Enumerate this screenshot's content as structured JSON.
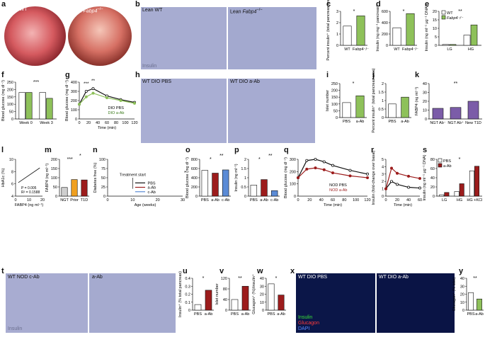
{
  "panels": {
    "a": {
      "letter": "a",
      "left": "Lean WT",
      "right_prefix": "Lean ",
      "right_gene": "Fabp4",
      "right_sup": "−/−"
    },
    "b": {
      "letter": "b",
      "left": "Lean WT",
      "right_prefix": "Lean ",
      "right_gene": "Fabp4",
      "right_sup": "−/−",
      "stain": "Insulin"
    },
    "c": {
      "letter": "c",
      "ylabel": "Percent insulin⁺ (total pancreas area)",
      "x": [
        "WT",
        "Fabp4⁻/⁻"
      ],
      "sig": "*"
    },
    "d": {
      "letter": "d",
      "ylabel": "Insulin (ng mg⁻¹ pancreas)",
      "x": [
        "WT",
        "Fabp4⁻/⁻"
      ],
      "sig": "*"
    },
    "e": {
      "letter": "e",
      "ylabel": "Insulin (ng ml⁻¹ μg⁻¹ DNA)",
      "x": [
        "LG",
        "HG"
      ],
      "legend": [
        "WT",
        "Fabp4⁻/⁻"
      ],
      "sig": "**"
    },
    "f": {
      "letter": "f",
      "ylabel": "Blood glucose (mg dl⁻¹)",
      "x": [
        "Week 0",
        "Week 3"
      ],
      "sig": "***"
    },
    "g": {
      "letter": "g",
      "ylabel": "Blood glucose (mg dl⁻¹)",
      "xlabel": "Time (min)",
      "legend": [
        "DIO PBS",
        "DIO a-Ab"
      ],
      "sig1": "***",
      "sig2": "**"
    },
    "h": {
      "letter": "h",
      "left": "WT DIO PBS",
      "right": "WT DIO a-Ab",
      "stain": "Insulin"
    },
    "i": {
      "letter": "i",
      "ylabel": "Islet number",
      "sig": "*"
    },
    "j": {
      "letter": "j",
      "ylabel": "Percent insulin⁺ (total pancreas area)"
    },
    "k": {
      "letter": "k",
      "ylabel": "FABP4 (ng ml⁻¹)",
      "x": [
        "NGT Ab⁻",
        "NGT Ab⁺",
        "New T1D"
      ],
      "sig": "**"
    },
    "l": {
      "letter": "l",
      "ylabel": "HbA1c (%)",
      "xlabel": "FABP4 (ng ml⁻¹)",
      "p": "P = 0.005",
      "r2": "R² = 0.1588"
    },
    "m": {
      "letter": "m",
      "ylabel": "FABP4 (ng ml⁻¹)",
      "x": [
        "NGT",
        "Prior",
        "T1D"
      ],
      "sig1": "***",
      "sig2": "*"
    },
    "n": {
      "letter": "n",
      "ylabel": "Diabetes free (%)",
      "xlabel": "Age (weeks)",
      "annotation": "Treatment start",
      "legend": [
        "PBS",
        "a-Ab",
        "c-Ab"
      ],
      "sig": "*"
    },
    "o": {
      "letter": "o",
      "ylabel": "Blood glucose (mg dl⁻¹)",
      "x": [
        "PBS",
        "a-Ab",
        "c-Ab"
      ],
      "sig1": "*",
      "sig2": "**"
    },
    "p": {
      "letter": "p",
      "ylabel": "Insulin (ng ml⁻¹)",
      "x": [
        "PBS",
        "a-Ab",
        "c-Ab"
      ],
      "sig1": "*",
      "sig2": "**"
    },
    "q": {
      "letter": "q",
      "ylabel": "Blood glucose (mg dl⁻¹)",
      "xlabel": "Time (min)",
      "legend": [
        "NOD PBS",
        "NOD a-Ab"
      ]
    },
    "r": {
      "letter": "r",
      "ylabel": "Insulin (fold-change over basal)",
      "xlabel": "Time (min)"
    },
    "s": {
      "letter": "s",
      "ylabel": "Insulin (ng ml⁻¹ μg⁻¹ DNA)",
      "x": [
        "LG",
        "HG",
        "HG +KCl"
      ],
      "legend": [
        "PBS",
        "a-Ab"
      ],
      "sig": "*"
    },
    "t": {
      "letter": "t",
      "left": "WT NOD c-Ab",
      "right": "a-Ab",
      "stain": "Insulin"
    },
    "u": {
      "letter": "u",
      "ylabel": "Insulin⁺ (% total pancreas)",
      "x": [
        "PBS",
        "a-Ab"
      ],
      "sig": "*"
    },
    "v": {
      "letter": "v",
      "ylabel": "Islet number",
      "x": [
        "PBS",
        "a-Ab"
      ],
      "sig": "**"
    },
    "w": {
      "letter": "w",
      "ylabel": "Glucagon⁺ (%)/insulin⁺",
      "x": [
        "PBS",
        "a-Ab"
      ],
      "sig": "*"
    },
    "x": {
      "letter": "x",
      "left": "WT DIO PBS",
      "right": "WT DIO a-Ab",
      "legend": [
        "Insulin",
        "Glucagon",
        "DAPI"
      ]
    },
    "y": {
      "letter": "y",
      "ylabel": "Glucagon⁺ (% islet)",
      "x": [
        "PBS",
        "a-Ab"
      ],
      "sig": "**"
    }
  },
  "chart_data": [
    {
      "panel": "c",
      "type": "bar",
      "categories": [
        "WT",
        "Fabp4⁻/⁻"
      ],
      "values": [
        1.7,
        2.6
      ],
      "ylim": [
        0,
        3
      ],
      "yticks": [
        0,
        1,
        2,
        3
      ]
    },
    {
      "panel": "d",
      "type": "bar",
      "categories": [
        "WT",
        "Fabp4⁻/⁻"
      ],
      "values": [
        310,
        560
      ],
      "ylim": [
        0,
        600
      ],
      "yticks": [
        0,
        200,
        400,
        600
      ]
    },
    {
      "panel": "e",
      "type": "bar",
      "categories": [
        "LG",
        "HG"
      ],
      "series": [
        {
          "name": "WT",
          "values": [
            0.5,
            6
          ]
        },
        {
          "name": "Fabp4⁻/⁻",
          "values": [
            0.5,
            12
          ]
        }
      ],
      "ylim": [
        0,
        20
      ],
      "yticks": [
        0,
        5,
        10,
        15,
        20
      ]
    },
    {
      "panel": "f",
      "type": "bar",
      "categories": [
        "Week 0",
        "Week 3"
      ],
      "series": [
        {
          "values": [
            180,
            180
          ]
        },
        {
          "values": [
            180,
            140
          ]
        }
      ],
      "ylim": [
        0,
        250
      ],
      "yticks": [
        0,
        50,
        100,
        150,
        200,
        250
      ]
    },
    {
      "panel": "g",
      "type": "line",
      "x": [
        0,
        15,
        30,
        60,
        90,
        120
      ],
      "series": [
        {
          "name": "DIO PBS",
          "values": [
            160,
            300,
            330,
            250,
            210,
            180
          ]
        },
        {
          "name": "DIO a-Ab",
          "values": [
            160,
            240,
            280,
            230,
            200,
            170
          ]
        }
      ],
      "ylim": [
        0,
        400
      ],
      "yticks": [
        0,
        100,
        200,
        300,
        400
      ],
      "xticks": [
        0,
        20,
        40,
        60,
        80,
        100,
        120
      ]
    },
    {
      "panel": "i",
      "type": "bar",
      "categories": [
        "PBS",
        "a-Ab"
      ],
      "values": [
        110,
        160
      ],
      "ylim": [
        0,
        250
      ],
      "yticks": [
        0,
        50,
        100,
        150,
        200,
        250
      ]
    },
    {
      "panel": "j",
      "type": "bar",
      "categories": [
        "PBS",
        "a-Ab"
      ],
      "values": [
        0.8,
        1.2
      ],
      "ylim": [
        0,
        2
      ],
      "yticks": [
        0,
        0.5,
        1,
        1.5,
        2
      ]
    },
    {
      "panel": "k",
      "type": "bar",
      "categories": [
        "NGT Ab⁻",
        "NGT Ab⁺",
        "New T1D"
      ],
      "values": [
        12,
        13,
        20
      ],
      "ylim": [
        0,
        40
      ],
      "yticks": [
        0,
        10,
        20,
        30,
        40
      ]
    },
    {
      "panel": "l",
      "type": "scatter",
      "xlim": [
        0,
        20
      ],
      "ylim": [
        4,
        10
      ],
      "yticks": [
        4,
        6,
        8,
        10
      ],
      "xticks": [
        0,
        10,
        20
      ]
    },
    {
      "panel": "m",
      "type": "bar",
      "categories": [
        "NGT",
        "Prior",
        "T1D"
      ],
      "values": [
        47,
        90,
        88
      ],
      "ylim": [
        0,
        200
      ],
      "yticks": [
        0,
        50,
        100,
        150,
        200
      ]
    },
    {
      "panel": "n",
      "type": "line",
      "series": [
        {
          "name": "PBS"
        },
        {
          "name": "a-Ab"
        },
        {
          "name": "c-Ab"
        }
      ],
      "xlim": [
        0,
        30
      ],
      "ylim": [
        0,
        100
      ],
      "xticks": [
        0,
        10,
        20,
        30
      ],
      "yticks": [
        0,
        25,
        50,
        75,
        100
      ]
    },
    {
      "panel": "o",
      "type": "bar",
      "categories": [
        "PBS",
        "a-Ab",
        "c-Ab"
      ],
      "values": [
        560,
        500,
        570
      ],
      "ylim": [
        0,
        800
      ],
      "yticks": [
        0,
        200,
        400,
        600,
        800
      ]
    },
    {
      "panel": "p",
      "type": "bar",
      "categories": [
        "PBS",
        "a-Ab",
        "c-Ab"
      ],
      "values": [
        0.6,
        0.9,
        0.3
      ],
      "ylim": [
        0,
        2
      ],
      "yticks": [
        0,
        0.5,
        1,
        1.5,
        2
      ]
    },
    {
      "panel": "q",
      "type": "line",
      "x": [
        0,
        15,
        30,
        45,
        60,
        90,
        120
      ],
      "series": [
        {
          "name": "NOD PBS",
          "values": [
            150,
            290,
            300,
            280,
            250,
            210,
            180
          ]
        },
        {
          "name": "NOD a-Ab",
          "values": [
            150,
            220,
            230,
            215,
            190,
            165,
            150
          ]
        }
      ],
      "ylim": [
        0,
        300
      ],
      "yticks": [
        0,
        100,
        200,
        300
      ],
      "xticks": [
        0,
        20,
        40,
        60,
        80,
        100,
        120
      ]
    },
    {
      "panel": "r",
      "type": "line",
      "x": [
        0,
        10,
        20,
        40,
        60
      ],
      "series": [
        {
          "values": [
            1,
            2,
            1.6,
            1.2,
            1.1
          ]
        },
        {
          "values": [
            1,
            3.8,
            3.1,
            2.7,
            2.4
          ]
        }
      ],
      "ylim": [
        0,
        5
      ],
      "yticks": [
        0,
        1,
        2,
        3,
        4,
        5
      ],
      "xticks": [
        0,
        20,
        40,
        60
      ]
    },
    {
      "panel": "s",
      "type": "bar",
      "categories": [
        "LG",
        "HG",
        "HG +KCl"
      ],
      "series": [
        {
          "name": "PBS",
          "values": [
            3,
            10,
            55
          ]
        },
        {
          "name": "a-Ab",
          "values": [
            8,
            27,
            65
          ]
        }
      ],
      "ylim": [
        0,
        80
      ],
      "yticks": [
        0,
        20,
        40,
        60,
        80
      ]
    },
    {
      "panel": "u",
      "type": "bar",
      "categories": [
        "PBS",
        "a-Ab"
      ],
      "values": [
        0.07,
        0.25
      ],
      "ylim": [
        0,
        0.4
      ],
      "yticks": [
        0,
        0.1,
        0.2,
        0.3,
        0.4
      ]
    },
    {
      "panel": "v",
      "type": "bar",
      "categories": [
        "PBS",
        "a-Ab"
      ],
      "values": [
        40,
        90
      ],
      "ylim": [
        0,
        120
      ],
      "yticks": [
        0,
        40,
        80,
        120
      ]
    },
    {
      "panel": "w",
      "type": "bar",
      "categories": [
        "PBS",
        "a-Ab"
      ],
      "values": [
        33,
        19
      ],
      "ylim": [
        0,
        40
      ],
      "yticks": [
        0,
        10,
        20,
        30,
        40
      ]
    },
    {
      "panel": "y",
      "type": "bar",
      "categories": [
        "PBS",
        "a-Ab"
      ],
      "values": [
        22,
        14
      ],
      "ylim": [
        0,
        40
      ],
      "yticks": [
        0,
        10,
        20,
        30,
        40
      ]
    }
  ]
}
